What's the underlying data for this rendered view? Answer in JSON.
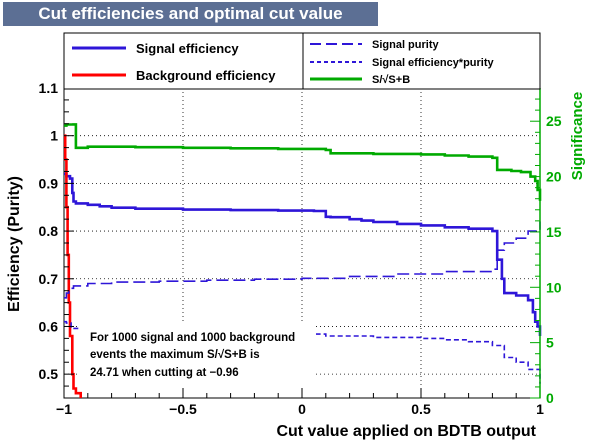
{
  "chart_data": {
    "type": "line",
    "title": "Cut efficiencies and optimal cut value",
    "xlabel": "Cut value applied on BDTB output",
    "ylabel": "Efficiency (Purity)",
    "y2label": "Significance",
    "xlim": [
      -1,
      1
    ],
    "ylim": [
      0.45,
      1.1
    ],
    "y2lim": [
      0,
      28
    ],
    "x_ticks": [
      "−1",
      "−0.5",
      "0",
      "0.5",
      "1"
    ],
    "y_ticks": [
      "0.5",
      "0.6",
      "0.7",
      "0.8",
      "0.9",
      "1",
      "1.1"
    ],
    "y2_ticks": [
      "0",
      "5",
      "10",
      "15",
      "20",
      "25"
    ],
    "grid": true,
    "legend_position": "top",
    "series": [
      {
        "name": "Signal efficiency",
        "axis": "left",
        "style": "solid",
        "color": "#2e16d8",
        "x": [
          -1,
          -0.99,
          -0.975,
          -0.965,
          -0.96,
          -0.95,
          -0.9,
          -0.85,
          -0.8,
          -0.7,
          -0.5,
          -0.3,
          -0.1,
          0.05,
          0.1,
          0.12,
          0.2,
          0.25,
          0.3,
          0.4,
          0.5,
          0.6,
          0.7,
          0.8,
          0.82,
          0.84,
          0.85,
          0.9,
          0.95,
          0.97,
          0.98,
          0.99,
          1.0
        ],
        "values": [
          0.92,
          0.915,
          0.91,
          0.88,
          0.862,
          0.858,
          0.855,
          0.852,
          0.849,
          0.847,
          0.845,
          0.844,
          0.843,
          0.842,
          0.83,
          0.829,
          0.825,
          0.822,
          0.819,
          0.815,
          0.812,
          0.808,
          0.805,
          0.8,
          0.74,
          0.7,
          0.67,
          0.665,
          0.655,
          0.63,
          0.61,
          0.6,
          0.58
        ]
      },
      {
        "name": "Background efficiency",
        "axis": "left",
        "style": "solid",
        "color": "#ff0000",
        "x": [
          -1,
          -0.995,
          -0.99,
          -0.985,
          -0.98,
          -0.975,
          -0.965,
          -0.96,
          -0.95,
          -0.93
        ],
        "values": [
          1.0,
          0.95,
          0.85,
          0.75,
          0.65,
          0.58,
          0.5,
          0.47,
          0.46,
          0.45
        ]
      },
      {
        "name": "Signal purity",
        "axis": "left",
        "style": "dashed",
        "color": "#2e16d8",
        "x": [
          -1,
          -0.99,
          -0.98,
          -0.96,
          -0.9,
          -0.8,
          -0.6,
          -0.4,
          -0.2,
          0.0,
          0.2,
          0.4,
          0.6,
          0.8,
          0.82,
          0.85,
          0.9,
          0.95,
          1.0
        ],
        "values": [
          0.66,
          0.67,
          0.68,
          0.685,
          0.69,
          0.693,
          0.695,
          0.697,
          0.699,
          0.701,
          0.705,
          0.71,
          0.715,
          0.72,
          0.76,
          0.775,
          0.785,
          0.8,
          0.82
        ]
      },
      {
        "name": "Signal efficiency*purity",
        "axis": "left",
        "style": "dashed",
        "color": "#2e16d8",
        "x": [
          -1,
          -0.99,
          -0.97,
          -0.9,
          -0.7,
          -0.5,
          -0.3,
          -0.1,
          0.05,
          0.1,
          0.3,
          0.5,
          0.6,
          0.7,
          0.8,
          0.85,
          0.9,
          0.95,
          1.0
        ],
        "values": [
          0.61,
          0.607,
          0.596,
          0.592,
          0.588,
          0.586,
          0.585,
          0.585,
          0.584,
          0.58,
          0.577,
          0.575,
          0.572,
          0.568,
          0.56,
          0.535,
          0.525,
          0.51,
          0.48
        ]
      },
      {
        "name": "S/√S+B",
        "axis": "right",
        "style": "solid",
        "color": "#00aa00",
        "x": [
          -1,
          -0.99,
          -0.98,
          -0.96,
          -0.95,
          -0.9,
          -0.7,
          -0.5,
          -0.3,
          -0.1,
          0.1,
          0.12,
          0.3,
          0.5,
          0.6,
          0.7,
          0.8,
          0.82,
          0.88,
          0.92,
          0.96,
          0.98,
          0.99,
          1.0
        ],
        "values": [
          24.6,
          24.7,
          24.7,
          24.71,
          22.6,
          22.7,
          22.65,
          22.6,
          22.55,
          22.5,
          22.4,
          22.1,
          22.05,
          22.0,
          21.9,
          21.8,
          21.7,
          20.6,
          20.5,
          20.4,
          20.0,
          19.6,
          18.8,
          17.8
        ]
      }
    ],
    "annotation": {
      "lines": [
        "For 1000 signal and 1000 background",
        "events the maximum S/√S+B is",
        "24.71 when cutting at −0.96"
      ]
    }
  }
}
